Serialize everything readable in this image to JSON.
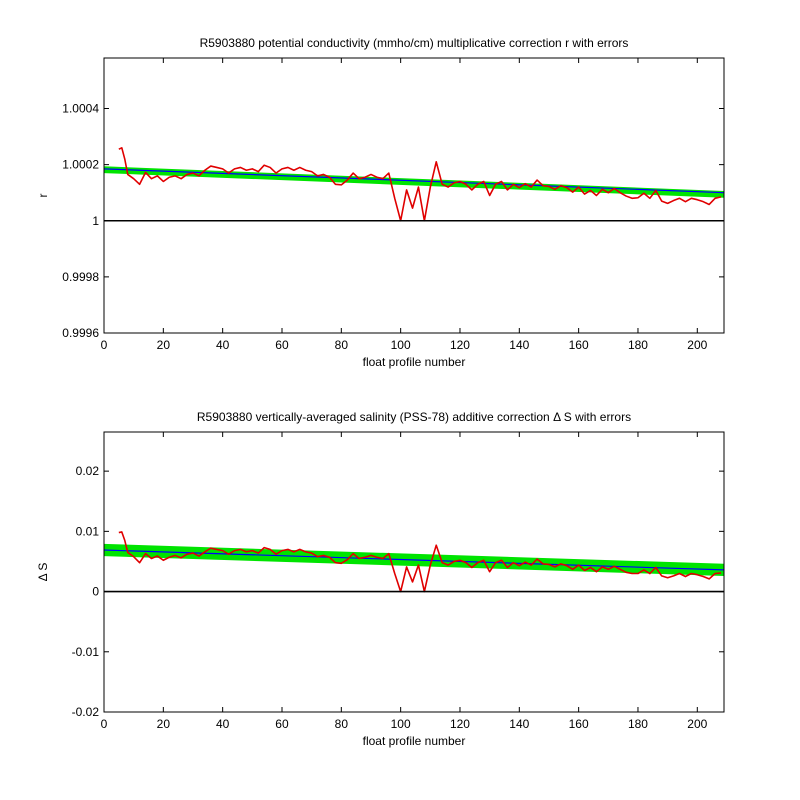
{
  "chart_data": [
    {
      "type": "line",
      "title": "R5903880 potential conductivity (mmho/cm) multiplicative correction r with errors",
      "xlabel": "float profile number",
      "ylabel": "r",
      "xlim": [
        0,
        209
      ],
      "ylim": [
        0.9996,
        1.00058
      ],
      "x_ticks": [
        0,
        20,
        40,
        60,
        80,
        100,
        120,
        140,
        160,
        180,
        200
      ],
      "y_ticks": [
        0.9996,
        0.9998,
        1,
        1.0002,
        1.0004
      ],
      "y_tick_labels": [
        "0.9996",
        "0.9998",
        "1",
        "1.0002",
        "1.0004"
      ],
      "reference_line": 1,
      "grid": false,
      "series": [
        {
          "role": "error-band",
          "color": "#00e400",
          "x": [
            0,
            209
          ],
          "y": [
            1.000182,
            1.000094
          ],
          "half_width": 8.5e-06
        },
        {
          "role": "fit",
          "color": "#0000ff",
          "x": [
            0,
            209
          ],
          "y": [
            1.000185,
            1.0001
          ]
        },
        {
          "role": "estimate",
          "color": "#e00000",
          "x": [
            5,
            6,
            7,
            8,
            10,
            12,
            14,
            16,
            18,
            20,
            22,
            24,
            26,
            28,
            30,
            32,
            34,
            36,
            38,
            40,
            42,
            44,
            46,
            48,
            50,
            52,
            54,
            56,
            58,
            60,
            62,
            64,
            66,
            68,
            70,
            72,
            74,
            76,
            78,
            80,
            82,
            84,
            86,
            88,
            90,
            92,
            94,
            96,
            98,
            100,
            102,
            104,
            106,
            108,
            110,
            112,
            114,
            116,
            118,
            120,
            122,
            124,
            126,
            128,
            130,
            132,
            134,
            136,
            138,
            140,
            142,
            144,
            146,
            148,
            150,
            152,
            154,
            156,
            158,
            160,
            162,
            164,
            166,
            168,
            170,
            172,
            174,
            176,
            178,
            180,
            182,
            184,
            186,
            188,
            190,
            192,
            194,
            196,
            198,
            200,
            202,
            204,
            206,
            208
          ],
          "y": [
            1.000255,
            1.00026,
            1.00022,
            1.000165,
            1.00015,
            1.00013,
            1.000172,
            1.00015,
            1.00016,
            1.00014,
            1.000155,
            1.00016,
            1.00015,
            1.000165,
            1.00017,
            1.00016,
            1.00018,
            1.000195,
            1.00019,
            1.000185,
            1.00017,
            1.000185,
            1.00019,
            1.00018,
            1.000185,
            1.000175,
            1.000198,
            1.00019,
            1.00017,
            1.000185,
            1.00019,
            1.00018,
            1.00019,
            1.00018,
            1.000175,
            1.00016,
            1.000165,
            1.000155,
            1.00013,
            1.000128,
            1.000145,
            1.00017,
            1.00015,
            1.000155,
            1.000165,
            1.000155,
            1.00015,
            1.00017,
            1.00008,
            1.0,
            1.00011,
            1.000045,
            1.00012,
            1.0,
            1.00012,
            1.00021,
            1.00013,
            1.00012,
            1.000135,
            1.00014,
            1.00013,
            1.00011,
            1.00013,
            1.00014,
            1.00009,
            1.00013,
            1.00014,
            1.00011,
            1.00013,
            1.000118,
            1.000132,
            1.00012,
            1.000145,
            1.000125,
            1.000122,
            1.000112,
            1.000125,
            1.000118,
            1.000102,
            1.00012,
            1.000095,
            1.000108,
            1.00009,
            1.000112,
            1.0001,
            1.000115,
            1.0001,
            1.000088,
            1.00008,
            1.000082,
            1.000098,
            1.00008,
            1.000108,
            1.00007,
            1.000062,
            1.000072,
            1.00008,
            1.000068,
            1.00008,
            1.000075,
            1.000068,
            1.000058,
            1.00008,
            1.000085
          ]
        }
      ]
    },
    {
      "type": "line",
      "title": "R5903880 vertically-averaged salinity (PSS-78) additive correction Δ S with errors",
      "xlabel": "float profile number",
      "ylabel": "Δ S",
      "xlim": [
        0,
        209
      ],
      "ylim": [
        -0.02,
        0.0265
      ],
      "x_ticks": [
        0,
        20,
        40,
        60,
        80,
        100,
        120,
        140,
        160,
        180,
        200
      ],
      "y_ticks": [
        -0.02,
        -0.01,
        0,
        0.01,
        0.02
      ],
      "y_tick_labels": [
        "-0.02",
        "-0.01",
        "0",
        "0.01",
        "0.02"
      ],
      "reference_line": 0,
      "grid": false,
      "series": [
        {
          "role": "error-band",
          "color": "#00e400",
          "x": [
            0,
            209
          ],
          "y": [
            0.0069,
            0.0036
          ],
          "half_width": 0.00085
        },
        {
          "role": "fit",
          "color": "#0000ff",
          "x": [
            0,
            209
          ],
          "y": [
            0.0069,
            0.0036
          ]
        },
        {
          "role": "estimate",
          "color": "#e00000",
          "x": [
            5,
            6,
            7,
            8,
            10,
            12,
            14,
            16,
            18,
            20,
            22,
            24,
            26,
            28,
            30,
            32,
            34,
            36,
            38,
            40,
            42,
            44,
            46,
            48,
            50,
            52,
            54,
            56,
            58,
            60,
            62,
            64,
            66,
            68,
            70,
            72,
            74,
            76,
            78,
            80,
            82,
            84,
            86,
            88,
            90,
            92,
            94,
            96,
            98,
            100,
            102,
            104,
            106,
            108,
            110,
            112,
            114,
            116,
            118,
            120,
            122,
            124,
            126,
            128,
            130,
            132,
            134,
            136,
            138,
            140,
            142,
            144,
            146,
            148,
            150,
            152,
            154,
            156,
            158,
            160,
            162,
            164,
            166,
            168,
            170,
            172,
            174,
            176,
            178,
            180,
            182,
            184,
            186,
            188,
            190,
            192,
            194,
            196,
            198,
            200,
            202,
            204,
            206,
            208
          ],
          "y": [
            0.0098,
            0.0099,
            0.0085,
            0.0065,
            0.0058,
            0.0048,
            0.0063,
            0.0055,
            0.0059,
            0.0052,
            0.0057,
            0.006,
            0.0056,
            0.0062,
            0.0064,
            0.0059,
            0.0066,
            0.0072,
            0.007,
            0.0068,
            0.0062,
            0.0068,
            0.007,
            0.0066,
            0.0068,
            0.0064,
            0.0073,
            0.007,
            0.0062,
            0.0068,
            0.007,
            0.0066,
            0.007,
            0.0066,
            0.0064,
            0.0058,
            0.006,
            0.0057,
            0.0048,
            0.0047,
            0.0053,
            0.0063,
            0.0055,
            0.0057,
            0.006,
            0.0057,
            0.0055,
            0.0063,
            0.003,
            0.0,
            0.0041,
            0.0016,
            0.0044,
            0.0,
            0.0044,
            0.0077,
            0.0048,
            0.0044,
            0.005,
            0.0052,
            0.0048,
            0.004,
            0.0048,
            0.0052,
            0.0033,
            0.0048,
            0.0052,
            0.004,
            0.0048,
            0.0043,
            0.0049,
            0.0044,
            0.0054,
            0.0046,
            0.0045,
            0.0041,
            0.0046,
            0.0043,
            0.0037,
            0.0044,
            0.0035,
            0.004,
            0.0033,
            0.0041,
            0.0037,
            0.0042,
            0.0037,
            0.0032,
            0.003,
            0.003,
            0.0036,
            0.003,
            0.004,
            0.0026,
            0.0023,
            0.0026,
            0.003,
            0.0025,
            0.003,
            0.0028,
            0.0025,
            0.0021,
            0.003,
            0.0031
          ]
        }
      ]
    }
  ]
}
